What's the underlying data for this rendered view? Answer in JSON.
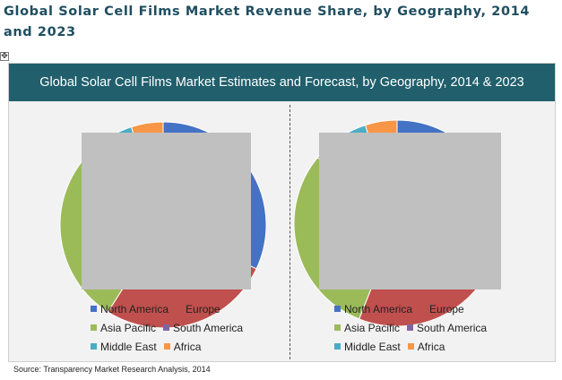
{
  "page": {
    "title": "Global Solar Cell Films Market Revenue Share, by Geography, 2014 and 2023",
    "handle_glyph": "✥",
    "source": "Source: Transparency Market Research Analysis, 2014"
  },
  "colors": {
    "header_bg": "#215f6c",
    "north_america": "#4472c4",
    "europe": "#c0504d",
    "asia_pacific": "#9bbb59",
    "south_america": "#8064a2",
    "middle_east": "#4bacc6",
    "africa": "#f79646"
  },
  "chart_data": {
    "type": "pie",
    "title": "Global Solar Cell Films Market Estimates and Forecast, by Geography, 2014 & 2023",
    "legend_placement": "bottom",
    "categories": [
      "North America",
      "Europe",
      "Asia Pacific",
      "South America",
      "Middle East",
      "Africa"
    ],
    "series": [
      {
        "values": [
          32,
          27,
          29,
          3,
          4,
          5
        ]
      },
      {
        "values": [
          32,
          24,
          30,
          5,
          4,
          5
        ]
      }
    ]
  }
}
